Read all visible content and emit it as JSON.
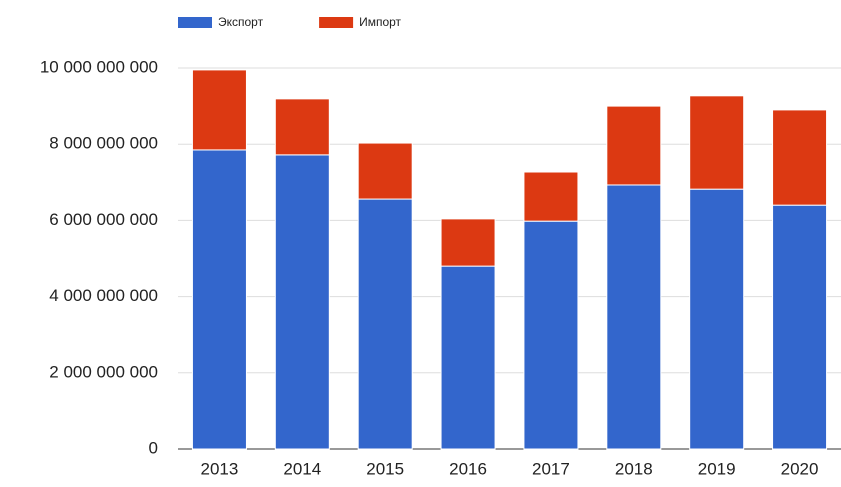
{
  "chart_data": {
    "type": "stacked_bar",
    "categories": [
      "2013",
      "2014",
      "2015",
      "2016",
      "2017",
      "2018",
      "2019",
      "2020"
    ],
    "series": [
      {
        "name": "Экспорт",
        "color": "#3366cc",
        "values": [
          7850000000,
          7720000000,
          6560000000,
          4800000000,
          5980000000,
          6930000000,
          6820000000,
          6400000000
        ]
      },
      {
        "name": "Импорт",
        "color": "#dc3912",
        "values": [
          2100000000,
          1470000000,
          1470000000,
          1240000000,
          1290000000,
          2070000000,
          2450000000,
          2500000000
        ]
      }
    ],
    "ylim": [
      0,
      10000000000
    ],
    "yticks": [
      0,
      {
        "value": 2000000000,
        "label": "2 000 000 000"
      },
      {
        "value": 4000000000,
        "label": "4 000 000 000"
      },
      {
        "value": 6000000000,
        "label": "6 000 000 000"
      },
      {
        "value": 8000000000,
        "label": "8 000 000 000"
      },
      {
        "value": 10000000000,
        "label": "10 000 000 000"
      }
    ],
    "grid": true,
    "legend": "top"
  }
}
